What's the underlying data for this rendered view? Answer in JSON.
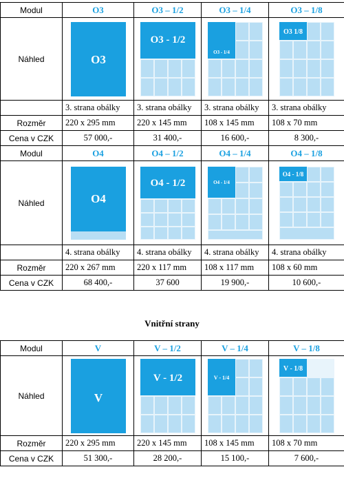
{
  "colors": {
    "accent": "#1aa0e0",
    "light": "#b8def4",
    "grid_line": "#e8f4fb"
  },
  "row_labels": {
    "modul": "Modul",
    "nahled": "Náhled",
    "rozmer": "Rozměr",
    "cena": "Cena v CZK"
  },
  "sections": [
    {
      "modules": [
        "O3",
        "O3 – 1/2",
        "O3 – 1/4",
        "O3 – 1/8"
      ],
      "previews": [
        "O3",
        "O3 - 1/2",
        "O3 - 1/4",
        "O3 1/8"
      ],
      "placement": [
        "3. strana obálky",
        "3. strana obálky",
        "3. strana obálky",
        "3. strana obálky"
      ],
      "sizes": [
        "220 x 295 mm",
        "220 x 145 mm",
        "108 x 145 mm",
        "108 x 70 mm"
      ],
      "prices": [
        "57 000,-",
        "31 400,-",
        "16 600,-",
        "8 300,-"
      ]
    },
    {
      "modules": [
        "O4",
        "O4 – 1/2",
        "O4 – 1/4",
        "O4 – 1/8"
      ],
      "previews": [
        "O4",
        "O4 - 1/2",
        "O4 - 1/4",
        "O4 - 1/8"
      ],
      "placement": [
        "4. strana obálky",
        "4. strana obálky",
        "4. strana obálky",
        "4. strana obálky"
      ],
      "sizes": [
        "220 x 267 mm",
        "220 x 117 mm",
        "108 x 117 mm",
        "108 x 60 mm"
      ],
      "prices": [
        "68 400,-",
        "37 600",
        "19 900,-",
        "10 600,-"
      ]
    },
    {
      "title": "Vnitřní strany",
      "modules": [
        "V",
        "V – 1/2",
        "V – 1/4",
        "V – 1/8"
      ],
      "previews": [
        "V",
        "V - 1/2",
        "V - 1/4",
        "V - 1/8"
      ],
      "sizes": [
        "220 x 295 mm",
        "220 x 145 mm",
        "108 x 145 mm",
        "108 x 70 mm"
      ],
      "prices": [
        "51 300,-",
        "28 200,-",
        "15 100,-",
        "7 600,-"
      ]
    }
  ]
}
